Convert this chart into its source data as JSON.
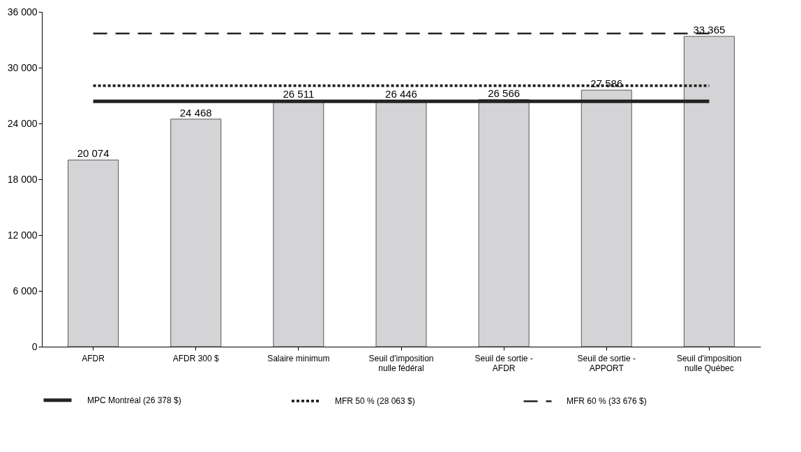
{
  "chart_data": {
    "type": "bar",
    "categories": [
      "AFDR",
      "AFDR 300 $",
      "Salaire minimum",
      "Seuil d'imposition\nnulle fédéral",
      "Seuil de sortie -\nAFDR",
      "Seuil de sortie -\nAPPORT",
      "Seuil d'imposition\nnulle Québec"
    ],
    "values": [
      20074,
      24468,
      26511,
      26446,
      26566,
      27586,
      33365
    ],
    "color": "#d4d4d6",
    "data_labels": true,
    "ylim": [
      0,
      36000
    ],
    "yticks": [
      {
        "value": 0,
        "label": "0"
      },
      {
        "value": 6000,
        "label": "6 000"
      },
      {
        "value": 12000,
        "label": "12 000"
      },
      {
        "value": 18000,
        "label": "18 000"
      },
      {
        "value": 24000,
        "label": "24 000"
      },
      {
        "value": 30000,
        "label": "30 000"
      },
      {
        "value": 36000,
        "label": "36 000"
      }
    ],
    "grid": false,
    "legend": "bottom",
    "ref_lines": [
      {
        "axis": "y",
        "value": 26378,
        "label": "MPC Montréal (26 378 $)",
        "line_style": "solid",
        "color": "#222222"
      },
      {
        "axis": "y",
        "value": 28063,
        "label": "MFR 50 % (28 063 $)",
        "line_style": "dotted",
        "color": "#222222"
      },
      {
        "axis": "y",
        "value": 33676,
        "label": "MFR 60 % (33 676 $)",
        "line_style": "dashed",
        "color": "#222222"
      }
    ]
  }
}
